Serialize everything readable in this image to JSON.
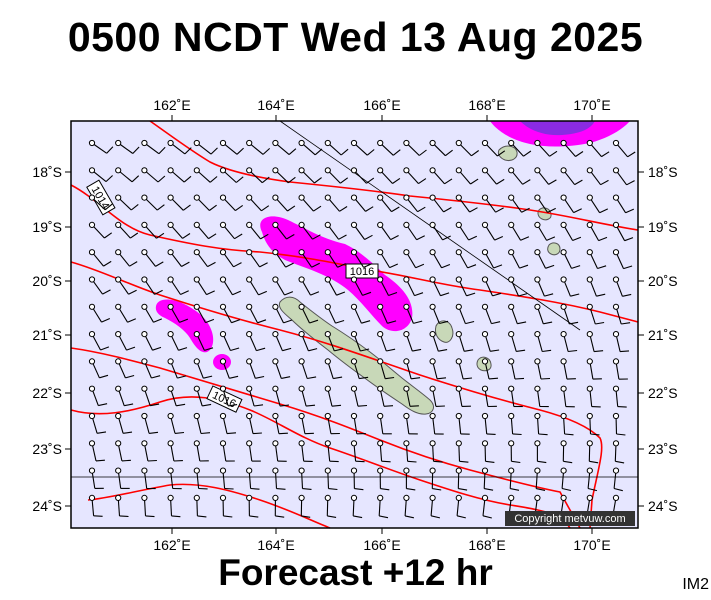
{
  "title": "0500 NCDT Wed 13 Aug 2025",
  "footer": "Forecast +12 hr",
  "tag": "IM2",
  "copyright": "Copyright metvuw.com",
  "axes": {
    "lon_labels": [
      "162˚E",
      "164˚E",
      "166˚E",
      "168˚E",
      "170˚E"
    ],
    "lat_labels": [
      "18˚S",
      "19˚S",
      "20˚S",
      "21˚S",
      "22˚S",
      "23˚S",
      "24˚S"
    ]
  },
  "isobars": {
    "labels": [
      "1014",
      "1016",
      "1016"
    ],
    "color": "#ff0000"
  },
  "colors": {
    "ocean": "#e6e6ff",
    "rain_magenta": "#ff00ff",
    "rain_purple": "#8a2be2",
    "land": "#c8d8b8",
    "wind_barb": "#000000"
  }
}
